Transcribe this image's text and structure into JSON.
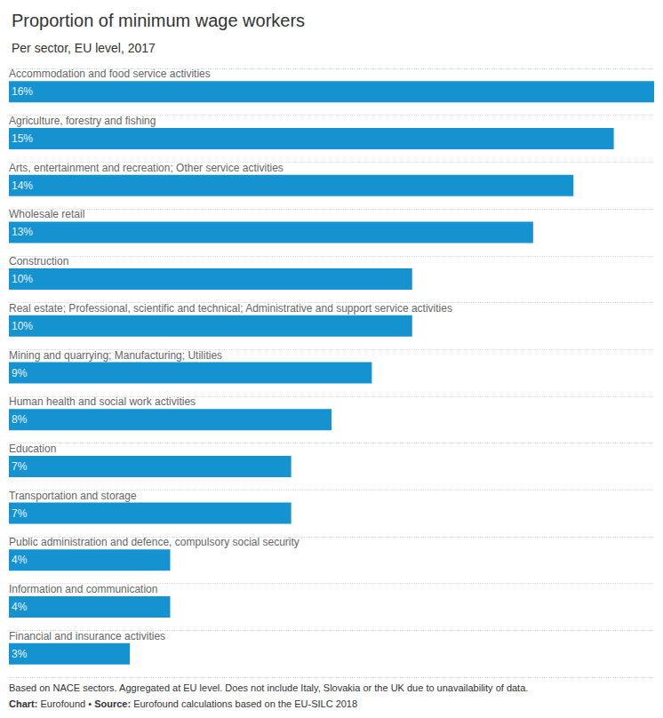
{
  "chart_data": {
    "type": "bar",
    "title": "Proportion of minimum wage workers",
    "subtitle": "Per sector, EU level, 2017",
    "orientation": "horizontal",
    "categories": [
      "Accommodation and food service activities",
      "Agriculture, forestry and fishing",
      "Arts, entertainment and recreation; Other service activities",
      "Wholesale retail",
      "Construction",
      "Real estate; Professional, scientific and technical; Administrative and support service activities",
      "Mining and quarrying; Manufacturing; Utilities",
      "Human health and social work activities",
      "Education",
      "Transportation and storage",
      "Public administration and defence, compulsory social security",
      "Information and communication",
      "Financial and insurance activities"
    ],
    "values": [
      16,
      15,
      14,
      13,
      10,
      10,
      9,
      8,
      7,
      7,
      4,
      4,
      3
    ],
    "value_labels": [
      "16%",
      "15%",
      "14%",
      "13%",
      "10%",
      "10%",
      "9%",
      "8%",
      "7%",
      "7%",
      "4%",
      "4%",
      "3%"
    ],
    "data_labels": true,
    "color": "#1592d0",
    "xlim": [
      0,
      16
    ],
    "tick_labels": false,
    "note": "Based on NACE sectors. Aggregated at EU level. Does not include Italy, Slovakia or the UK due to unavailability of data.",
    "credits": [
      {
        "label": "Chart:",
        "text": "Eurofound"
      },
      {
        "label": "Source:",
        "text": "Eurofound calculations based on the EU-SILC 2018"
      }
    ],
    "credits_separator": " • "
  }
}
